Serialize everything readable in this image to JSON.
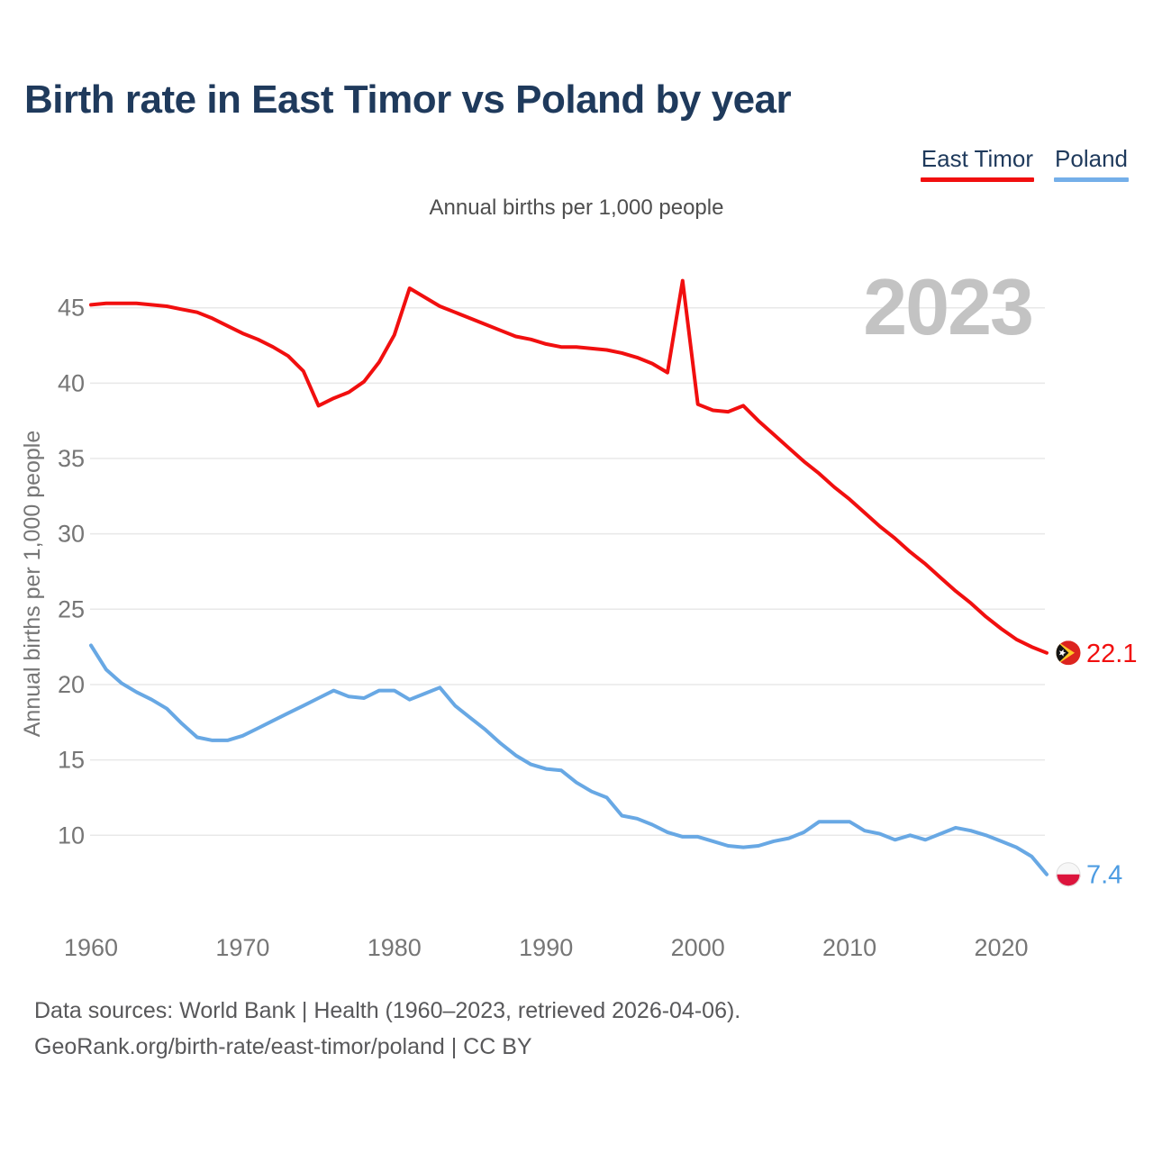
{
  "title": "Birth rate in East Timor vs Poland by year",
  "subtitle": "Annual births per 1,000 people",
  "watermark": "2023",
  "legend": {
    "items": [
      {
        "label": "East Timor",
        "color": "#f10f0f"
      },
      {
        "label": "Poland",
        "color": "#74afe9"
      }
    ]
  },
  "footer": {
    "line1": "Data sources: World Bank | Health (1960–2023, retrieved 2026-04-06).",
    "line2": "GeoRank.org/birth-rate/east-timor/poland | CC BY"
  },
  "chart_data": {
    "type": "line",
    "title": "Annual births per 1,000 people",
    "xlabel": "",
    "ylabel": "Annual births per 1,000 people",
    "grid": "horizontal",
    "legend_position": "top-right",
    "xlim": [
      1960,
      2023
    ],
    "ylim": [
      7,
      47
    ],
    "xticks": [
      1960,
      1970,
      1980,
      1990,
      2000,
      2010,
      2020
    ],
    "yticks": [
      10,
      15,
      20,
      25,
      30,
      35,
      40,
      45
    ],
    "x": [
      1960,
      1961,
      1962,
      1963,
      1964,
      1965,
      1966,
      1967,
      1968,
      1969,
      1970,
      1971,
      1972,
      1973,
      1974,
      1975,
      1976,
      1977,
      1978,
      1979,
      1980,
      1981,
      1982,
      1983,
      1984,
      1985,
      1986,
      1987,
      1988,
      1989,
      1990,
      1991,
      1992,
      1993,
      1994,
      1995,
      1996,
      1997,
      1998,
      1999,
      2000,
      2001,
      2002,
      2003,
      2004,
      2005,
      2006,
      2007,
      2008,
      2009,
      2010,
      2011,
      2012,
      2013,
      2014,
      2015,
      2016,
      2017,
      2018,
      2019,
      2020,
      2021,
      2022,
      2023
    ],
    "series": [
      {
        "name": "East Timor",
        "color": "#f10f0f",
        "label_color": "#f10f0f",
        "end_label": "22.1",
        "flag": "east-timor",
        "values": [
          45.2,
          45.3,
          45.3,
          45.3,
          45.2,
          45.1,
          44.9,
          44.7,
          44.3,
          43.8,
          43.3,
          42.9,
          42.4,
          41.8,
          40.8,
          38.5,
          39.0,
          39.4,
          40.1,
          41.4,
          43.2,
          46.3,
          45.7,
          45.1,
          44.7,
          44.3,
          43.9,
          43.5,
          43.1,
          42.9,
          42.6,
          42.4,
          42.4,
          42.3,
          42.2,
          42.0,
          41.7,
          41.3,
          40.7,
          46.8,
          38.6,
          38.2,
          38.1,
          38.5,
          37.5,
          36.6,
          35.7,
          34.8,
          34.0,
          33.1,
          32.3,
          31.4,
          30.5,
          29.7,
          28.8,
          28.0,
          27.1,
          26.2,
          25.4,
          24.5,
          23.7,
          23.0,
          22.5,
          22.1
        ]
      },
      {
        "name": "Poland",
        "color": "#68a8e4",
        "label_color": "#4d9ce2",
        "end_label": "7.4",
        "flag": "poland",
        "values": [
          22.6,
          21.0,
          20.1,
          19.5,
          19.0,
          18.4,
          17.4,
          16.5,
          16.3,
          16.3,
          16.6,
          17.1,
          17.6,
          18.1,
          18.6,
          19.1,
          19.6,
          19.2,
          19.1,
          19.6,
          19.6,
          19.0,
          19.4,
          19.8,
          18.6,
          17.8,
          17.0,
          16.1,
          15.3,
          14.7,
          14.4,
          14.3,
          13.5,
          12.9,
          12.5,
          11.3,
          11.1,
          10.7,
          10.2,
          9.9,
          9.9,
          9.6,
          9.3,
          9.2,
          9.3,
          9.6,
          9.8,
          10.2,
          10.9,
          10.9,
          10.9,
          10.3,
          10.1,
          9.7,
          10.0,
          9.7,
          10.1,
          10.5,
          10.3,
          10.0,
          9.6,
          9.2,
          8.6,
          7.4
        ]
      }
    ]
  },
  "colors": {
    "grid": "#e8e8e8",
    "tick_text": "#767676",
    "watermark": "#c3c3c3",
    "flag_east_timor_red": "#dc241f",
    "flag_east_timor_yellow": "#ffc726",
    "flag_east_timor_black": "#141414",
    "flag_poland_white": "#f7f7f7",
    "flag_poland_red": "#dc143c"
  }
}
